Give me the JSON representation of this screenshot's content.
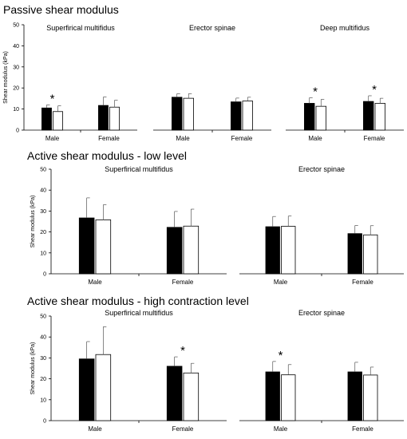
{
  "sections": [
    {
      "title": "Passive shear modulus"
    },
    {
      "title": "Active shear modulus - low level"
    },
    {
      "title": "Active shear modulus - high contraction level"
    }
  ],
  "chart_data": [
    {
      "type": "bar",
      "section": 0,
      "title": "Superfirical multifidus",
      "ylabel": "Shear modulus (kPa)",
      "ylim": [
        0,
        50
      ],
      "yticks": [
        0,
        10,
        20,
        30,
        40,
        50
      ],
      "categories": [
        "Male",
        "Female"
      ],
      "series": [
        {
          "color": "#000000",
          "values": [
            10.5,
            11.7
          ],
          "errors": [
            1.5,
            4.0
          ]
        },
        {
          "color": "#ffffff",
          "values": [
            8.8,
            10.9
          ],
          "errors": [
            2.7,
            3.3
          ]
        }
      ],
      "significance": [
        {
          "category": "Male",
          "label": "*"
        }
      ]
    },
    {
      "type": "bar",
      "section": 0,
      "title": "Erector spinae",
      "ylim": [
        0,
        50
      ],
      "categories": [
        "Male",
        "Female"
      ],
      "series": [
        {
          "color": "#000000",
          "values": [
            15.6,
            13.4
          ],
          "errors": [
            1.7,
            1.8
          ]
        },
        {
          "color": "#ffffff",
          "values": [
            15.1,
            13.8
          ],
          "errors": [
            2.2,
            1.8
          ]
        }
      ],
      "significance": []
    },
    {
      "type": "bar",
      "section": 0,
      "title": "Deep multifidus",
      "ylim": [
        0,
        50
      ],
      "categories": [
        "Male",
        "Female"
      ],
      "series": [
        {
          "color": "#000000",
          "values": [
            12.7,
            13.6
          ],
          "errors": [
            2.7,
            2.7
          ]
        },
        {
          "color": "#ffffff",
          "values": [
            11.3,
            12.7
          ],
          "errors": [
            3.3,
            2.4
          ]
        }
      ],
      "significance": [
        {
          "category": "Male",
          "label": "*"
        },
        {
          "category": "Female",
          "label": "*"
        }
      ]
    },
    {
      "type": "bar",
      "section": 1,
      "title": "Superfirical multifidus",
      "ylabel": "Shear modulus (kPa)",
      "ylim": [
        0,
        50
      ],
      "yticks": [
        0,
        10,
        20,
        30,
        40,
        50
      ],
      "categories": [
        "Male",
        "Female"
      ],
      "series": [
        {
          "color": "#000000",
          "values": [
            26.7,
            22.2
          ],
          "errors": [
            9.6,
            7.6
          ]
        },
        {
          "color": "#ffffff",
          "values": [
            25.8,
            22.8
          ],
          "errors": [
            7.2,
            8.1
          ]
        }
      ],
      "significance": []
    },
    {
      "type": "bar",
      "section": 1,
      "title": "Erector spinae",
      "ylim": [
        0,
        50
      ],
      "categories": [
        "Male",
        "Female"
      ],
      "series": [
        {
          "color": "#000000",
          "values": [
            22.5,
            19.2
          ],
          "errors": [
            4.9,
            3.9
          ]
        },
        {
          "color": "#ffffff",
          "values": [
            22.7,
            18.6
          ],
          "errors": [
            4.9,
            4.4
          ]
        }
      ],
      "significance": []
    },
    {
      "type": "bar",
      "section": 2,
      "title": "Superfirical multifidus",
      "ylabel": "Shear modulus (kPa)",
      "ylim": [
        0,
        50
      ],
      "yticks": [
        0,
        10,
        20,
        30,
        40,
        50
      ],
      "categories": [
        "Male",
        "Female"
      ],
      "series": [
        {
          "color": "#000000",
          "values": [
            29.5,
            26.0
          ],
          "errors": [
            8.3,
            4.5
          ]
        },
        {
          "color": "#ffffff",
          "values": [
            31.6,
            22.8
          ],
          "errors": [
            13.3,
            4.6
          ]
        }
      ],
      "significance": [
        {
          "category": "Female",
          "label": "*"
        }
      ]
    },
    {
      "type": "bar",
      "section": 2,
      "title": "Erector spinae",
      "ylim": [
        0,
        50
      ],
      "categories": [
        "Male",
        "Female"
      ],
      "series": [
        {
          "color": "#000000",
          "values": [
            23.3,
            23.3
          ],
          "errors": [
            5.0,
            4.6
          ]
        },
        {
          "color": "#ffffff",
          "values": [
            21.9,
            21.8
          ],
          "errors": [
            4.9,
            3.8
          ]
        }
      ],
      "significance": [
        {
          "category": "Male",
          "label": "*"
        }
      ]
    }
  ]
}
